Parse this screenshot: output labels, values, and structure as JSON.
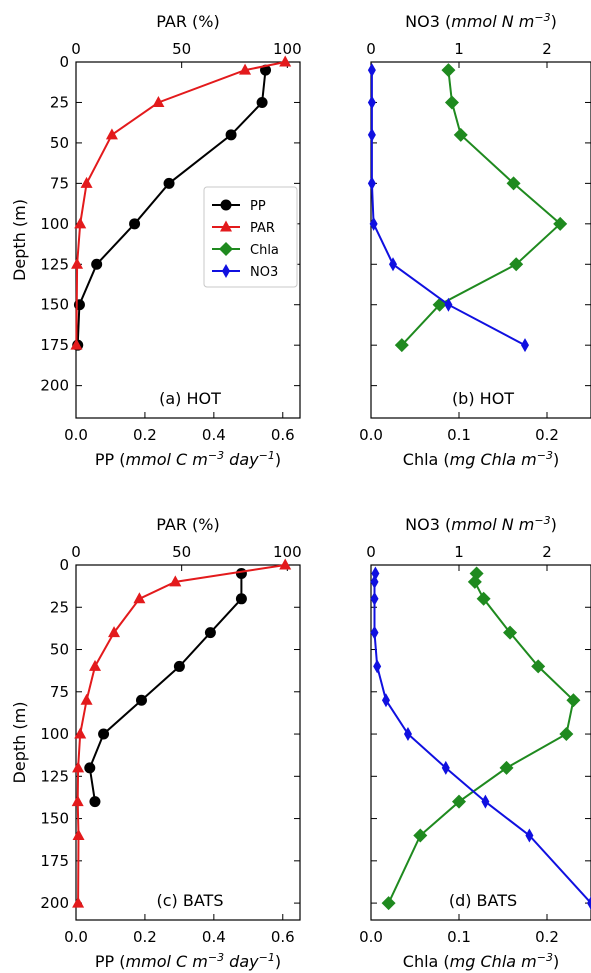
{
  "colors": {
    "PP": "#000000",
    "PAR": "#e31a1c",
    "Chla": "#1f8a1f",
    "NO3": "#1010e0"
  },
  "labels": {
    "ylabel": "Depth (m)",
    "pp_label": "PP (mmol C m^-3 day^-1)",
    "par_label": "PAR (%)",
    "chla_label": "Chla (mg Chla m^-3)",
    "no3_label": "NO3 (mmol N m^-3)"
  },
  "legend": [
    {
      "name": "PP",
      "marker": "circle",
      "color": "#000000"
    },
    {
      "name": "PAR",
      "marker": "triangle",
      "color": "#e31a1c"
    },
    {
      "name": "Chla",
      "marker": "diamond",
      "color": "#1f8a1f"
    },
    {
      "name": "NO3",
      "marker": "thin-diamond",
      "color": "#1010e0"
    }
  ],
  "chart_data": [
    {
      "type": "line",
      "panel": "(a) HOT",
      "ylabel": "Depth (m)",
      "ylim": [
        220,
        0
      ],
      "yticks": [
        0,
        25,
        50,
        75,
        100,
        125,
        150,
        175,
        200
      ],
      "bottom_axis": {
        "label": "PP (mmol C m^-3 day^-1)",
        "lim": [
          0,
          0.65
        ],
        "ticks": [
          "0.0",
          "0.2",
          "0.4",
          "0.6"
        ],
        "tick_values": [
          0,
          0.2,
          0.4,
          0.6
        ]
      },
      "top_axis": {
        "label": "PAR (%)",
        "lim": [
          0,
          106
        ],
        "ticks": [
          "0",
          "50",
          "100"
        ],
        "tick_values": [
          0,
          50,
          100
        ]
      },
      "series": [
        {
          "name": "PP",
          "axis": "bottom",
          "marker": "circle",
          "x": [
            0.55,
            0.54,
            0.45,
            0.27,
            0.17,
            0.06,
            0.01,
            0.005
          ],
          "y": [
            5,
            25,
            45,
            75,
            100,
            125,
            150,
            175
          ]
        },
        {
          "name": "PAR",
          "axis": "top",
          "marker": "triangle",
          "x": [
            99,
            80,
            39,
            17,
            5,
            2,
            0.5,
            0.2
          ],
          "y": [
            0,
            5,
            25,
            45,
            75,
            100,
            125,
            175
          ]
        }
      ]
    },
    {
      "type": "line",
      "panel": "(b) HOT",
      "ylim": [
        220,
        0
      ],
      "yticks": [
        0,
        25,
        50,
        75,
        100,
        125,
        150,
        175,
        200
      ],
      "bottom_axis": {
        "label": "Chla (mg Chla m^-3)",
        "lim": [
          0,
          0.25
        ],
        "ticks": [
          "0.0",
          "0.1",
          "0.2"
        ],
        "tick_values": [
          0,
          0.1,
          0.2
        ]
      },
      "top_axis": {
        "label": "NO3 (mmol N m^-3)",
        "lim": [
          0,
          2.5
        ],
        "ticks": [
          "0",
          "1",
          "2"
        ],
        "tick_values": [
          0,
          1,
          2
        ]
      },
      "series": [
        {
          "name": "Chla",
          "axis": "bottom",
          "marker": "diamond",
          "x": [
            0.088,
            0.092,
            0.102,
            0.162,
            0.215,
            0.165,
            0.078,
            0.035
          ],
          "y": [
            5,
            25,
            45,
            75,
            100,
            125,
            150,
            175
          ]
        },
        {
          "name": "NO3",
          "axis": "top",
          "marker": "thin-diamond",
          "x": [
            0.01,
            0.01,
            0.01,
            0.01,
            0.03,
            0.25,
            0.88,
            1.75
          ],
          "y": [
            5,
            25,
            45,
            75,
            100,
            125,
            150,
            175
          ]
        }
      ]
    },
    {
      "type": "line",
      "panel": "(c) BATS",
      "ylabel": "Depth (m)",
      "ylim": [
        210,
        0
      ],
      "yticks": [
        0,
        25,
        50,
        75,
        100,
        125,
        150,
        175,
        200
      ],
      "bottom_axis": {
        "label": "PP (mmol C m^-3 day^-1)",
        "lim": [
          0,
          0.65
        ],
        "ticks": [
          "0.0",
          "0.2",
          "0.4",
          "0.6"
        ],
        "tick_values": [
          0,
          0.2,
          0.4,
          0.6
        ]
      },
      "top_axis": {
        "label": "PAR (%)",
        "lim": [
          0,
          106
        ],
        "ticks": [
          "0",
          "50",
          "100"
        ],
        "tick_values": [
          0,
          50,
          100
        ]
      },
      "series": [
        {
          "name": "PP",
          "axis": "bottom",
          "marker": "circle",
          "x": [
            0.48,
            0.48,
            0.39,
            0.3,
            0.19,
            0.08,
            0.04,
            0.055
          ],
          "y": [
            5,
            20,
            40,
            60,
            80,
            100,
            120,
            140
          ]
        },
        {
          "name": "PAR",
          "axis": "top",
          "marker": "triangle",
          "x": [
            99,
            47,
            30,
            18,
            9,
            5,
            2,
            1,
            0.8,
            1.2,
            1
          ],
          "y": [
            0,
            10,
            20,
            40,
            60,
            80,
            100,
            120,
            140,
            160,
            200
          ]
        }
      ]
    },
    {
      "type": "line",
      "panel": "(d) BATS",
      "ylim": [
        210,
        0
      ],
      "yticks": [
        0,
        25,
        50,
        75,
        100,
        125,
        150,
        175,
        200
      ],
      "bottom_axis": {
        "label": "Chla (mg Chla m^-3)",
        "lim": [
          0,
          0.25
        ],
        "ticks": [
          "0.0",
          "0.1",
          "0.2"
        ],
        "tick_values": [
          0,
          0.1,
          0.2
        ]
      },
      "top_axis": {
        "label": "NO3 (mmol N m^-3)",
        "lim": [
          0,
          2.5
        ],
        "ticks": [
          "0",
          "1",
          "2"
        ],
        "tick_values": [
          0,
          1,
          2
        ]
      },
      "series": [
        {
          "name": "Chla",
          "axis": "bottom",
          "marker": "diamond",
          "x": [
            0.12,
            0.118,
            0.128,
            0.158,
            0.19,
            0.23,
            0.222,
            0.154,
            0.1,
            0.056,
            0.02
          ],
          "y": [
            5,
            10,
            20,
            40,
            60,
            80,
            100,
            120,
            140,
            160,
            200
          ]
        },
        {
          "name": "NO3",
          "axis": "top",
          "marker": "thin-diamond",
          "x": [
            0.05,
            0.04,
            0.04,
            0.04,
            0.07,
            0.17,
            0.42,
            0.85,
            1.3,
            1.8,
            2.5
          ],
          "y": [
            5,
            10,
            20,
            40,
            60,
            80,
            100,
            120,
            140,
            160,
            200
          ]
        }
      ]
    }
  ]
}
